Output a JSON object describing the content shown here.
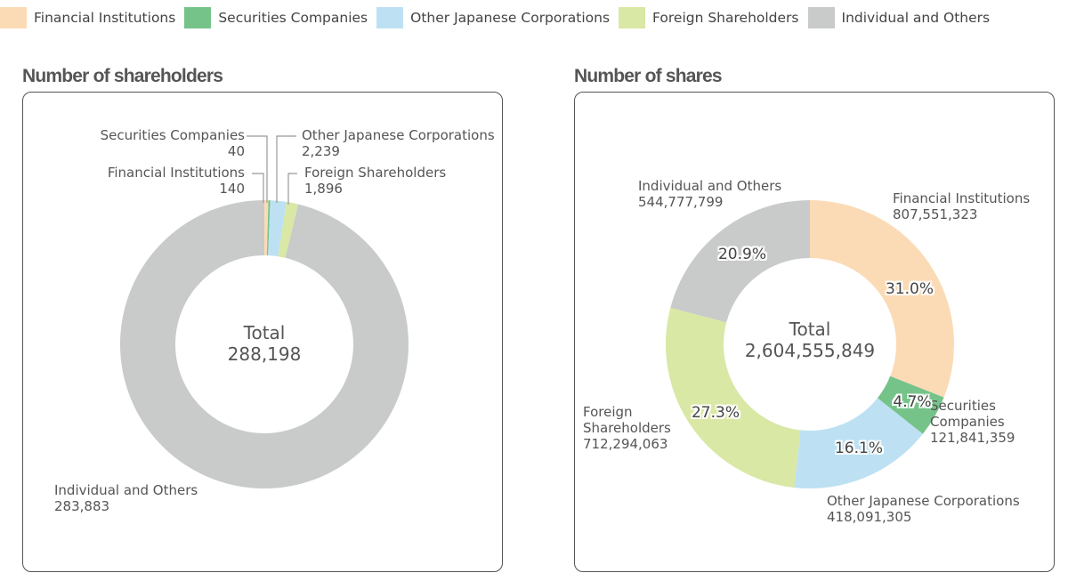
{
  "legend": [
    {
      "label": "Financial Institutions",
      "color": "#FBDBB6"
    },
    {
      "label": "Securities Companies",
      "color": "#76C38A"
    },
    {
      "label": "Other Japanese Corporations",
      "color": "#BDE1F3"
    },
    {
      "label": "Foreign Shareholders",
      "color": "#D9E8A5"
    },
    {
      "label": "Individual and Others",
      "color": "#C9CACA"
    }
  ],
  "left": {
    "title": "Number of shareholders",
    "center_label": "Total",
    "center_value": "288,198",
    "labels": {
      "securities": {
        "name": "Securities Companies",
        "value": "40"
      },
      "financial": {
        "name": "Financial Institutions",
        "value": "140"
      },
      "other_jp": {
        "name": "Other Japanese Corporations",
        "value": "2,239"
      },
      "foreign": {
        "name": "Foreign Shareholders",
        "value": "1,896"
      },
      "individual": {
        "name": "Individual and Others",
        "value": "283,883"
      }
    }
  },
  "right": {
    "title": "Number of shares",
    "center_label": "Total",
    "center_value": "2,604,555,849",
    "labels": {
      "individual": {
        "name": "Individual and Others",
        "value": "544,777,799",
        "pct": "20.9%"
      },
      "financial": {
        "name": "Financial Institutions",
        "value": "807,551,323",
        "pct": "31.0%"
      },
      "securities": {
        "name1": "Securities",
        "name2": "Companies",
        "value": "121,841,359",
        "pct": "4.7%"
      },
      "other_jp": {
        "name": "Other Japanese Corporations",
        "value": "418,091,305",
        "pct": "16.1%"
      },
      "foreign": {
        "name1": "Foreign",
        "name2": "Shareholders",
        "value": "712,294,063",
        "pct": "27.3%"
      }
    }
  },
  "chart_data": [
    {
      "type": "pie",
      "title": "Number of shareholders",
      "donut": true,
      "center_text": "Total 288,198",
      "categories": [
        "Financial Institutions",
        "Securities Companies",
        "Other Japanese Corporations",
        "Foreign Shareholders",
        "Individual and Others"
      ],
      "values": [
        140,
        40,
        2239,
        1896,
        283883
      ],
      "colors": [
        "#FBDBB6",
        "#76C38A",
        "#BDE1F3",
        "#D9E8A5",
        "#C9CACA"
      ],
      "total": 288198,
      "legend_position": "top"
    },
    {
      "type": "pie",
      "title": "Number of shares",
      "donut": true,
      "center_text": "Total 2,604,555,849",
      "categories": [
        "Financial Institutions",
        "Securities Companies",
        "Other Japanese Corporations",
        "Foreign Shareholders",
        "Individual and Others"
      ],
      "values": [
        807551323,
        121841359,
        418091305,
        712294063,
        544777799
      ],
      "percentages": [
        31.0,
        4.7,
        16.1,
        27.3,
        20.9
      ],
      "colors": [
        "#FBDBB6",
        "#76C38A",
        "#BDE1F3",
        "#D9E8A5",
        "#C9CACA"
      ],
      "total": 2604555849,
      "legend_position": "top"
    }
  ]
}
